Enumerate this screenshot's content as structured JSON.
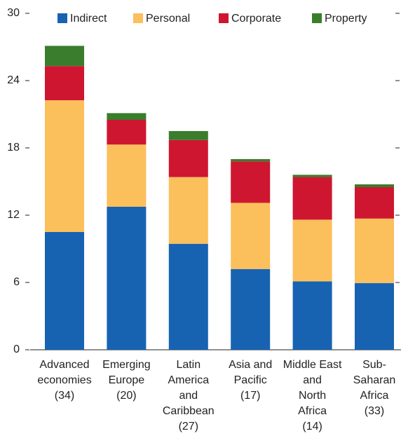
{
  "chart_data": {
    "type": "stacked_bar",
    "categories": [
      "Advanced\neconomies\n(34)",
      "Emerging\nEurope\n(20)",
      "Latin\nAmerica\nand\nCaribbean\n(27)",
      "Asia and\nPacific\n(17)",
      "Middle East\nand\nNorth\nAfrica\n(14)",
      "Sub-\nSaharan\nAfrica\n(33)"
    ],
    "series": [
      {
        "name": "Indirect",
        "color": "#1763b2",
        "values": [
          10.5,
          12.75,
          9.45,
          7.2,
          6.1,
          5.95
        ]
      },
      {
        "name": "Personal",
        "color": "#fbbf5c",
        "values": [
          11.75,
          5.55,
          5.95,
          5.9,
          5.5,
          5.75
        ]
      },
      {
        "name": "Corporate",
        "color": "#cf1630",
        "values": [
          3.05,
          2.2,
          3.3,
          3.7,
          3.8,
          2.8
        ]
      },
      {
        "name": "Property",
        "color": "#3a7d2c",
        "values": [
          1.8,
          0.6,
          0.8,
          0.2,
          0.2,
          0.25
        ]
      }
    ],
    "ylim": [
      0,
      30
    ],
    "yticks": [
      0,
      6,
      12,
      18,
      24,
      30
    ],
    "legend": "top"
  }
}
